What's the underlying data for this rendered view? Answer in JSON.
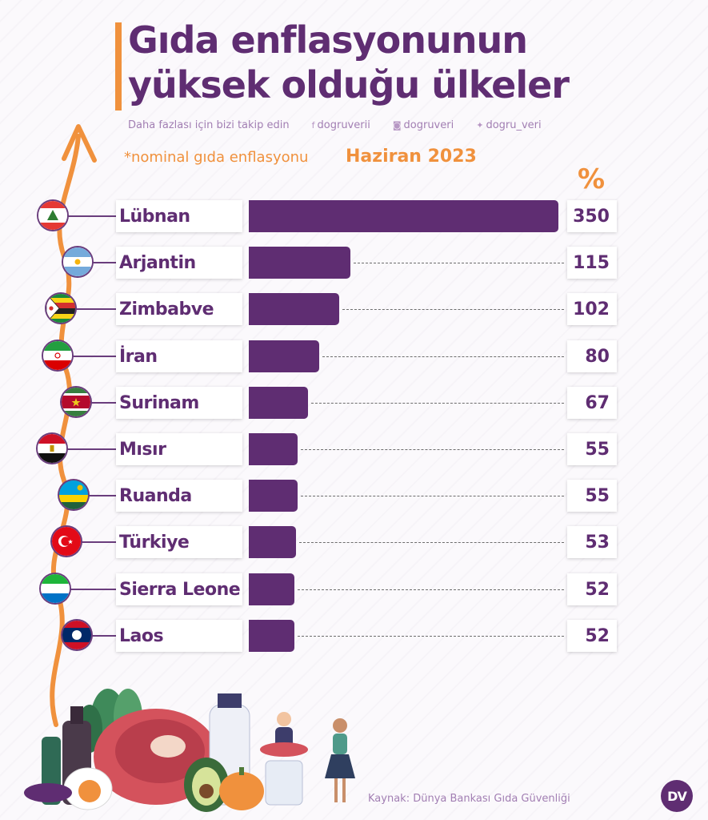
{
  "header": {
    "title_line1": "Gıda enflasyonunun",
    "title_line2": "yüksek olduğu ülkeler",
    "follow_text": "Daha fazlası için bizi takip edin",
    "social": [
      {
        "icon": "facebook-icon",
        "handle": "dogruverii"
      },
      {
        "icon": "instagram-icon",
        "handle": "dogruveri"
      },
      {
        "icon": "twitter-icon",
        "handle": "dogru_veri"
      }
    ],
    "note": "*nominal gıda enflasyonu",
    "period": "Haziran 2023"
  },
  "colors": {
    "purple": "#5f2d72",
    "orange": "#f0913d"
  },
  "chart_data": {
    "type": "bar",
    "orientation": "horizontal",
    "unit": "%",
    "categories": [
      "Lübnan",
      "Arjantin",
      "Zimbabve",
      "İran",
      "Surinam",
      "Mısır",
      "Ruanda",
      "Türkiye",
      "Sierra Leone",
      "Laos"
    ],
    "values": [
      350,
      115,
      102,
      80,
      67,
      55,
      55,
      53,
      52,
      52
    ],
    "value_labels": [
      "350",
      "115",
      "102",
      "80",
      "67",
      "55",
      "55",
      "53",
      "52",
      "52"
    ],
    "flags": [
      "lebanon-flag-icon",
      "argentina-flag-icon",
      "zimbabwe-flag-icon",
      "iran-flag-icon",
      "suriname-flag-icon",
      "egypt-flag-icon",
      "rwanda-flag-icon",
      "turkey-flag-icon",
      "sierra-leone-flag-icon",
      "laos-flag-icon"
    ]
  },
  "footer": {
    "source": "Kaynak: Dünya Bankası Gıda Güvenliği",
    "logo_text": "DV"
  }
}
